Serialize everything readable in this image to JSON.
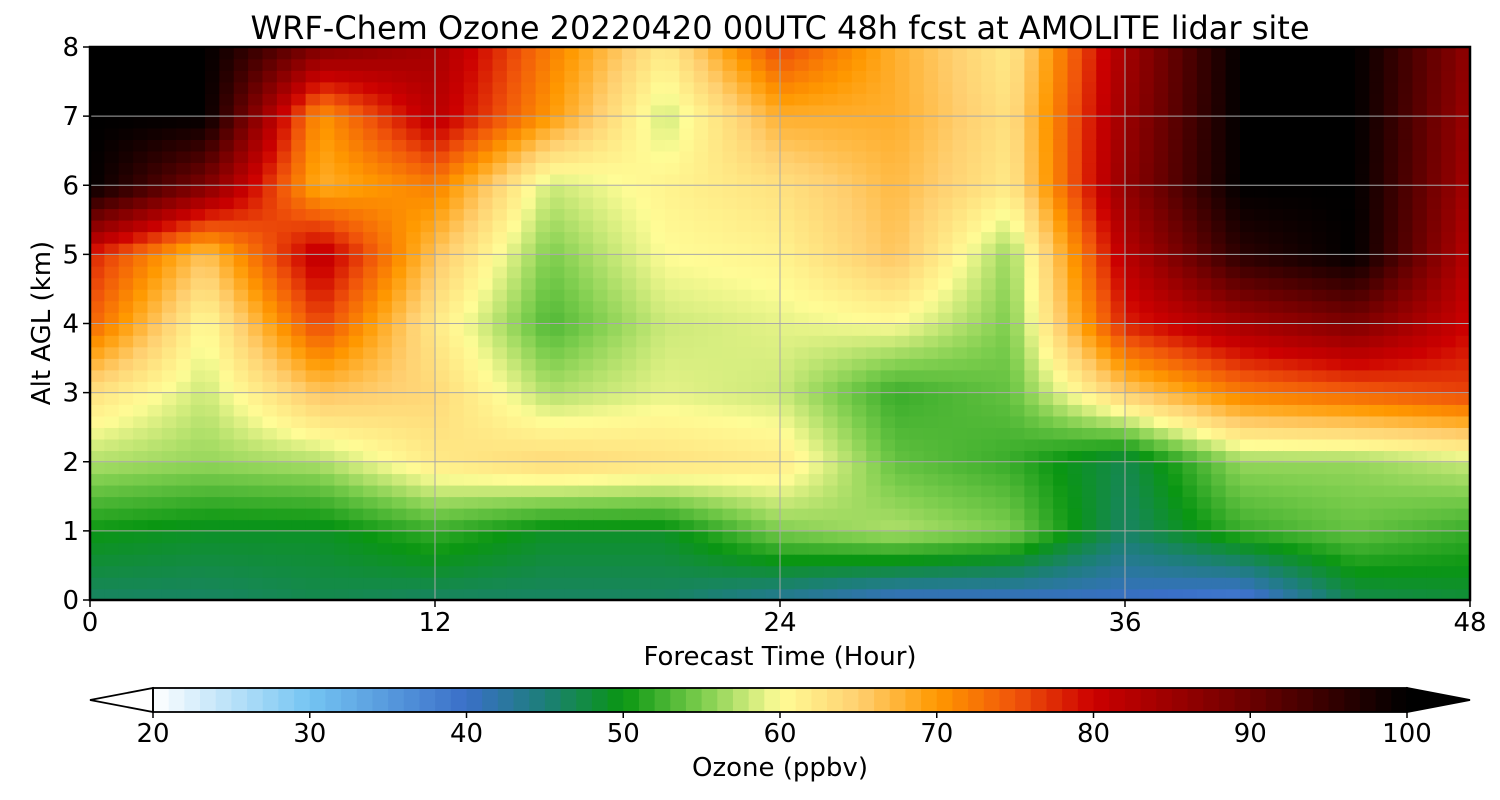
{
  "chart_data": {
    "type": "heatmap",
    "title": "WRF-Chem Ozone  20220420 00UTC 48h fcst at AMOLITE lidar site",
    "xlabel": "Forecast Time (Hour)",
    "ylabel": "Alt AGL (km)",
    "xlim": [
      0,
      48
    ],
    "ylim": [
      0,
      8
    ],
    "x_ticks": [
      0,
      12,
      24,
      36,
      48
    ],
    "y_ticks": [
      0,
      1,
      2,
      3,
      4,
      5,
      6,
      7,
      8
    ],
    "grid": true,
    "colorbar": {
      "label": "Ozone  (ppbv)",
      "range": [
        20,
        100
      ],
      "ticks": [
        20,
        30,
        40,
        50,
        60,
        70,
        80,
        90,
        100
      ],
      "extend": "both",
      "orientation": "horizontal",
      "stops": [
        {
          "value": 20,
          "color": "#ffffff"
        },
        {
          "value": 30,
          "color": "#74c4f2"
        },
        {
          "value": 40,
          "color": "#3a6fc8"
        },
        {
          "value": 45,
          "color": "#1c7f78"
        },
        {
          "value": 50,
          "color": "#0a9612"
        },
        {
          "value": 55,
          "color": "#7ccd4d"
        },
        {
          "value": 60,
          "color": "#fffc96"
        },
        {
          "value": 65,
          "color": "#ffcf70"
        },
        {
          "value": 70,
          "color": "#ff9900"
        },
        {
          "value": 75,
          "color": "#f0540a"
        },
        {
          "value": 80,
          "color": "#cc0000"
        },
        {
          "value": 90,
          "color": "#6b0000"
        },
        {
          "value": 100,
          "color": "#000000"
        }
      ]
    },
    "grid_x": [
      0,
      4,
      8,
      12,
      16,
      20,
      24,
      28,
      32,
      36,
      40,
      44,
      48
    ],
    "grid_y": [
      0,
      1,
      2,
      3,
      4,
      5,
      6,
      7,
      8
    ],
    "values": [
      [
        46,
        46,
        47,
        46,
        46,
        46,
        43,
        40,
        40,
        40,
        38,
        47,
        48
      ],
      [
        50,
        49,
        49,
        52,
        49,
        49,
        55,
        57,
        55,
        46,
        52,
        54,
        52
      ],
      [
        57,
        56,
        57,
        62,
        64,
        63,
        62,
        54,
        52,
        47,
        56,
        56,
        58
      ],
      [
        63,
        58,
        66,
        64,
        57,
        59,
        58,
        52,
        54,
        65,
        72,
        74,
        76
      ],
      [
        74,
        60,
        76,
        62,
        53,
        58,
        59,
        60,
        55,
        78,
        84,
        88,
        80
      ],
      [
        78,
        66,
        82,
        66,
        55,
        60,
        61,
        66,
        56,
        82,
        96,
        100,
        82
      ],
      [
        100,
        88,
        68,
        72,
        58,
        61,
        63,
        67,
        62,
        86,
        100,
        100,
        84
      ],
      [
        100,
        100,
        70,
        82,
        70,
        58,
        68,
        68,
        63,
        85,
        100,
        100,
        85
      ],
      [
        100,
        100,
        88,
        84,
        72,
        62,
        76,
        68,
        62,
        84,
        100,
        100,
        86
      ]
    ]
  }
}
